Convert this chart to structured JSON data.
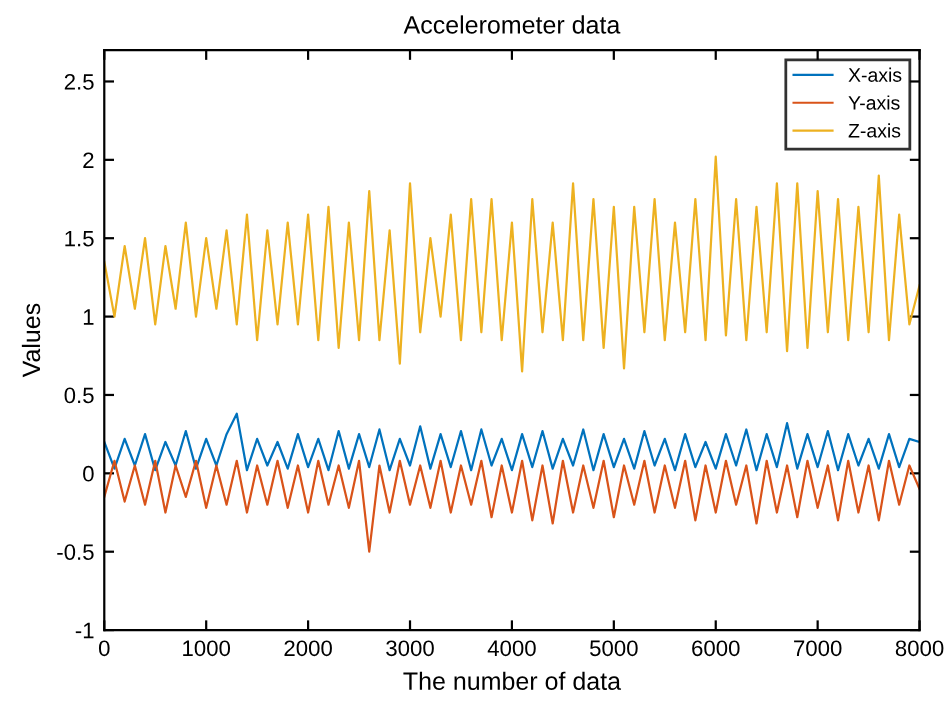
{
  "chart_data": {
    "type": "line",
    "title": "Accelerometer data",
    "xlabel": "The number of data",
    "ylabel": "Values",
    "x": [
      0,
      100,
      200,
      300,
      400,
      500,
      600,
      700,
      800,
      900,
      1000,
      1100,
      1200,
      1300,
      1400,
      1500,
      1600,
      1700,
      1800,
      1900,
      2000,
      2100,
      2200,
      2300,
      2400,
      2500,
      2600,
      2700,
      2800,
      2900,
      3000,
      3100,
      3200,
      3300,
      3400,
      3500,
      3600,
      3700,
      3800,
      3900,
      4000,
      4100,
      4200,
      4300,
      4400,
      4500,
      4600,
      4700,
      4800,
      4900,
      5000,
      5100,
      5200,
      5300,
      5400,
      5500,
      5600,
      5700,
      5800,
      5900,
      6000,
      6100,
      6200,
      6300,
      6400,
      6500,
      6600,
      6700,
      6800,
      6900,
      7000,
      7100,
      7200,
      7300,
      7400,
      7500,
      7600,
      7700,
      7800,
      7900,
      8000
    ],
    "series": [
      {
        "name": "X-axis",
        "color": "#0072bd",
        "values": [
          0.2,
          0.03,
          0.22,
          0.05,
          0.25,
          0.02,
          0.2,
          0.05,
          0.27,
          0.03,
          0.22,
          0.05,
          0.25,
          0.38,
          0.02,
          0.22,
          0.05,
          0.2,
          0.03,
          0.25,
          0.04,
          0.22,
          0.02,
          0.27,
          0.03,
          0.25,
          0.04,
          0.28,
          0.02,
          0.22,
          0.05,
          0.3,
          0.03,
          0.25,
          0.04,
          0.27,
          0.02,
          0.28,
          0.05,
          0.22,
          0.02,
          0.25,
          0.04,
          0.27,
          0.03,
          0.22,
          0.05,
          0.28,
          0.02,
          0.25,
          0.04,
          0.22,
          0.03,
          0.27,
          0.05,
          0.22,
          0.02,
          0.25,
          0.04,
          0.2,
          0.03,
          0.25,
          0.05,
          0.28,
          0.02,
          0.25,
          0.04,
          0.32,
          0.03,
          0.25,
          0.04,
          0.27,
          0.02,
          0.25,
          0.05,
          0.22,
          0.03,
          0.25,
          0.04,
          0.22,
          0.2
        ]
      },
      {
        "name": "Y-axis",
        "color": "#d95319",
        "values": [
          -0.15,
          0.08,
          -0.18,
          0.05,
          -0.2,
          0.08,
          -0.25,
          0.05,
          -0.15,
          0.08,
          -0.22,
          0.05,
          -0.2,
          0.08,
          -0.25,
          0.05,
          -0.2,
          0.08,
          -0.22,
          0.05,
          -0.25,
          0.08,
          -0.2,
          0.05,
          -0.22,
          0.08,
          -0.5,
          0.05,
          -0.25,
          0.08,
          -0.2,
          0.05,
          -0.22,
          0.08,
          -0.25,
          0.05,
          -0.2,
          0.08,
          -0.28,
          0.05,
          -0.25,
          0.08,
          -0.3,
          0.05,
          -0.32,
          0.08,
          -0.25,
          0.05,
          -0.22,
          0.08,
          -0.28,
          0.05,
          -0.2,
          0.08,
          -0.25,
          0.05,
          -0.22,
          0.08,
          -0.3,
          0.05,
          -0.25,
          0.08,
          -0.2,
          0.05,
          -0.32,
          0.08,
          -0.25,
          0.05,
          -0.28,
          0.08,
          -0.22,
          0.05,
          -0.3,
          0.08,
          -0.25,
          0.05,
          -0.3,
          0.08,
          -0.2,
          0.05,
          -0.1
        ]
      },
      {
        "name": "Z-axis",
        "color": "#edb120",
        "values": [
          1.35,
          1.0,
          1.45,
          1.05,
          1.5,
          0.95,
          1.45,
          1.05,
          1.6,
          1.0,
          1.5,
          1.05,
          1.55,
          0.95,
          1.65,
          0.85,
          1.55,
          0.95,
          1.6,
          0.95,
          1.65,
          0.85,
          1.7,
          0.8,
          1.6,
          0.85,
          1.8,
          0.85,
          1.55,
          0.7,
          1.85,
          0.9,
          1.5,
          1.0,
          1.65,
          0.85,
          1.75,
          0.9,
          1.75,
          0.85,
          1.6,
          0.65,
          1.75,
          0.9,
          1.6,
          0.85,
          1.85,
          0.85,
          1.75,
          0.8,
          1.7,
          0.67,
          1.7,
          0.9,
          1.75,
          0.85,
          1.6,
          0.9,
          1.75,
          0.85,
          2.02,
          0.88,
          1.75,
          0.85,
          1.7,
          0.9,
          1.85,
          0.78,
          1.85,
          0.8,
          1.8,
          0.9,
          1.75,
          0.85,
          1.7,
          0.9,
          1.9,
          0.85,
          1.65,
          0.95,
          1.2
        ]
      }
    ],
    "xlim": [
      0,
      8000
    ],
    "xticks": [
      0,
      1000,
      2000,
      3000,
      4000,
      5000,
      6000,
      7000,
      8000
    ],
    "ylim": [
      -1,
      2.7
    ],
    "yticks": [
      -1,
      -0.5,
      0,
      0.5,
      1,
      1.5,
      2,
      2.5
    ],
    "grid": false,
    "legend": "top right",
    "marker": "none",
    "line_style": "solid"
  }
}
